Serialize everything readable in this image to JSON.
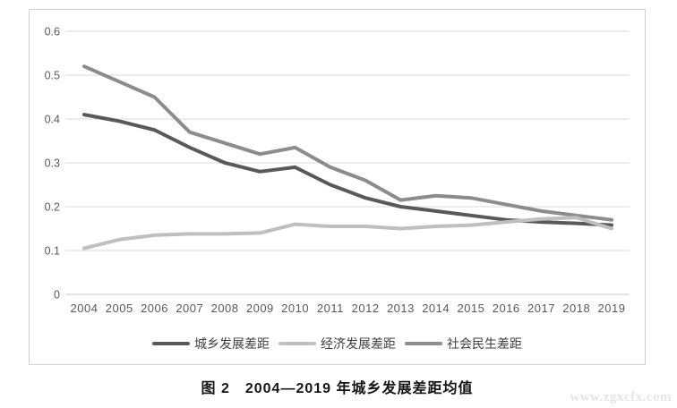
{
  "chart_data": {
    "type": "line",
    "title": "图 2　2004—2019 年城乡发展差距均值",
    "x": [
      "2004",
      "2005",
      "2006",
      "2007",
      "2008",
      "2009",
      "2010",
      "2011",
      "2012",
      "2013",
      "2014",
      "2015",
      "2016",
      "2017",
      "2018",
      "2019"
    ],
    "series": [
      {
        "name": "城乡发展差距",
        "color": "#595959",
        "values": [
          0.41,
          0.395,
          0.375,
          0.335,
          0.3,
          0.28,
          0.29,
          0.25,
          0.22,
          0.2,
          0.19,
          0.18,
          0.17,
          0.165,
          0.162,
          0.158
        ]
      },
      {
        "name": "经济发展差距",
        "color": "#bfbfbf",
        "values": [
          0.105,
          0.125,
          0.135,
          0.138,
          0.138,
          0.14,
          0.16,
          0.155,
          0.155,
          0.15,
          0.155,
          0.158,
          0.165,
          0.172,
          0.175,
          0.15
        ]
      },
      {
        "name": "社会民生差距",
        "color": "#8c8c8c",
        "values": [
          0.52,
          0.485,
          0.45,
          0.37,
          0.345,
          0.32,
          0.335,
          0.29,
          0.26,
          0.215,
          0.225,
          0.22,
          0.205,
          0.19,
          0.18,
          0.17
        ]
      }
    ],
    "ylim": [
      0,
      0.6
    ],
    "ytick_labels": [
      "0",
      "0.1",
      "0.2",
      "0.3",
      "0.4",
      "0.5",
      "0.6"
    ],
    "grid": true,
    "legend_position": "bottom",
    "xlabel": "",
    "ylabel": "",
    "colors": {
      "gridline": "#d9d9d9",
      "zero_axis": "#c9c9c9",
      "tick_text": "#595959"
    }
  },
  "figure": {
    "watermark": "www.zgxcfx.com"
  }
}
